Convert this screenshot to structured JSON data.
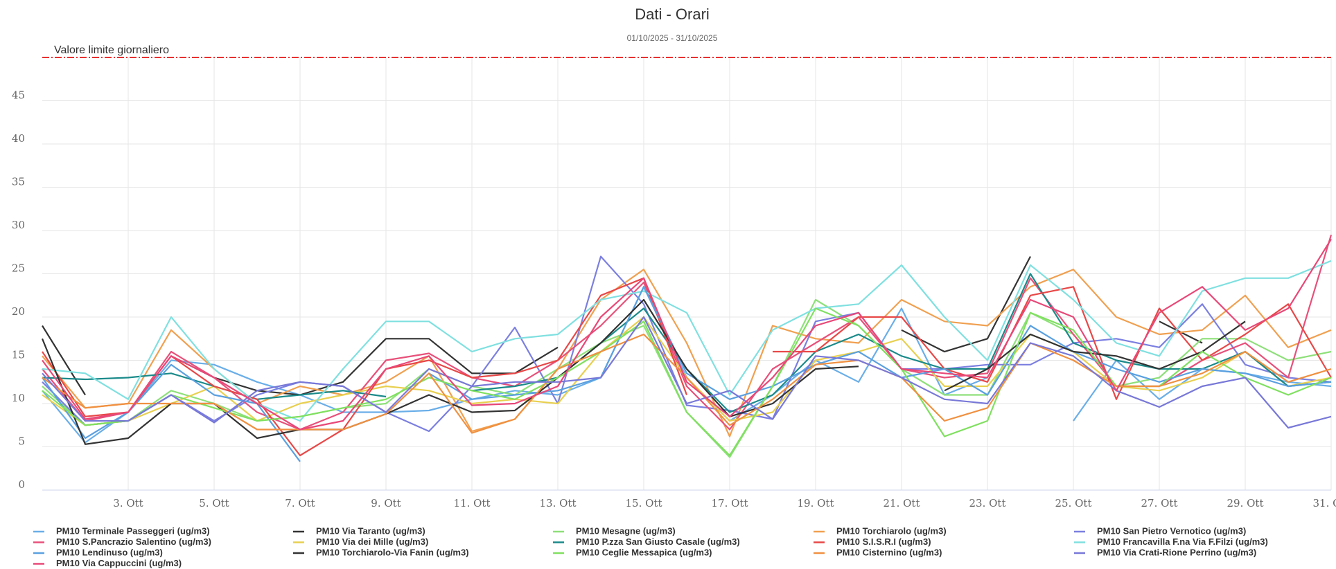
{
  "chart_data": {
    "type": "line",
    "title": "Dati - Orari",
    "subtitle": "01/10/2025 - 31/10/2025",
    "categories": [
      null,
      null,
      "3. Ott",
      null,
      "5. Ott",
      null,
      "7. Ott",
      null,
      "9. Ott",
      null,
      "11. Ott",
      null,
      "13. Ott",
      null,
      "15. Ott",
      null,
      "17. Ott",
      null,
      "19. Ott",
      null,
      "21. Ott",
      null,
      "23. Ott",
      null,
      "25. Ott",
      null,
      "27. Ott",
      null,
      "29. Ott",
      null,
      "31. Ott"
    ],
    "ylim": [
      0,
      50
    ],
    "yticks": [
      0,
      5,
      10,
      15,
      20,
      25,
      30,
      35,
      40,
      45
    ],
    "grid": true,
    "limit_line": {
      "value": 50,
      "label": "Valore limite giornaliero",
      "color": "#e83030"
    },
    "series": [
      {
        "name": "PM10 Terminale Passeggeri (ug/m3)",
        "color": "#6aaee8",
        "values": [
          11.5,
          5.5,
          9,
          15,
          14.5,
          12.5,
          11,
          9,
          9,
          9.2,
          10.5,
          11.5,
          11,
          13,
          23.5,
          13,
          8,
          11,
          15,
          12.5,
          21,
          11,
          13,
          null,
          8,
          15,
          10.5,
          14,
          13.5,
          12.5,
          12
        ]
      },
      {
        "name": "PM10 Via Taranto (ug/m3)",
        "color": "#333333",
        "values": [
          19,
          11,
          null,
          15.5,
          13,
          11.5,
          11,
          12.5,
          17.5,
          17.5,
          13.5,
          13.5,
          16.5,
          null,
          null,
          null,
          null,
          null,
          null,
          null,
          18.5,
          16,
          17.5,
          27,
          null,
          null,
          19.5,
          17,
          null,
          null,
          null
        ]
      },
      {
        "name": "PM10 Mesagne (ug/m3)",
        "color": "#8ee07a",
        "values": [
          12,
          7.5,
          8,
          11.5,
          10,
          8,
          8.5,
          9.5,
          10,
          14,
          12,
          11,
          14,
          17,
          19,
          9,
          3.8,
          12,
          22,
          19,
          14,
          11,
          11,
          20.5,
          18,
          12,
          13,
          17.5,
          17.5,
          15,
          16
        ]
      },
      {
        "name": "PM10 Torchiarolo (ug/m3)",
        "color": "#f0a050",
        "values": [
          15.5,
          9.5,
          10,
          18.5,
          14,
          10,
          12,
          11,
          12.5,
          15.5,
          6.8,
          8.2,
          14,
          22,
          25.5,
          17,
          6.2,
          19,
          17.5,
          17,
          22,
          19.5,
          19,
          23.5,
          25.5,
          20,
          18,
          18.5,
          22.5,
          16.5,
          18.5
        ]
      },
      {
        "name": "PM10 San Pietro Vernotico (ug/m3)",
        "color": "#7b7fe0",
        "values": [
          12.5,
          7.5,
          8,
          11,
          8,
          11,
          12.5,
          12,
          9,
          6.8,
          12,
          18.8,
          10,
          27,
          21.5,
          9.8,
          9.2,
          8.2,
          19.5,
          20.5,
          14,
          14,
          14.5,
          14.5,
          17,
          17.5,
          16.5,
          21.5,
          14.5,
          13,
          12.5
        ]
      },
      {
        "name": "PM10 S.Pancrazio Salentino (ug/m3)",
        "color": "#e8507a",
        "values": [
          14,
          8,
          9,
          16,
          13,
          9,
          7,
          9,
          15,
          15.8,
          13,
          12,
          15,
          19,
          24,
          12,
          7,
          14,
          17,
          20,
          14,
          13,
          13.5,
          24.5,
          18,
          12,
          12,
          15,
          17,
          13,
          29.5
        ]
      },
      {
        "name": "PM10 Via dei Mille (ug/m3)",
        "color": "#e8d050",
        "values": [
          11,
          7.5,
          8,
          10,
          12,
          8,
          10,
          11,
          12,
          11.5,
          10,
          10.5,
          10,
          16,
          20,
          13,
          8,
          9,
          15,
          16,
          17.5,
          12,
          12,
          18,
          16,
          12,
          11.5,
          13,
          16,
          12,
          13
        ]
      },
      {
        "name": "PM10 P.zza San Giusto Casale (ug/m3)",
        "color": "#1a8a8a",
        "values": [
          13,
          12.8,
          13,
          13.5,
          12,
          10.5,
          11,
          11.5,
          10.8,
          null,
          11.5,
          12,
          13,
          17,
          21,
          14,
          9,
          11,
          16,
          18,
          15.5,
          14,
          14,
          25,
          17,
          15,
          14,
          14,
          16,
          12,
          12.5
        ]
      },
      {
        "name": "PM10 S.I.S.R.I (ug/m3)",
        "color": "#e84848",
        "values": [
          16,
          8.5,
          9,
          15.5,
          12,
          10.5,
          4,
          7,
          14,
          15,
          13,
          13.5,
          15,
          22.5,
          24.5,
          11,
          null,
          16,
          16,
          20,
          20,
          14,
          12.5,
          22.5,
          23.5,
          10.5,
          21,
          15,
          18,
          21.5,
          13
        ]
      },
      {
        "name": "PM10 Francavilla F.na Via F.Filzi (ug/m3)",
        "color": "#80e0e0",
        "values": [
          14,
          13.5,
          10.5,
          20,
          14,
          10,
          8,
          14,
          19.5,
          19.5,
          16,
          17.5,
          18,
          22,
          23,
          20.5,
          11,
          18.5,
          21,
          21.5,
          26,
          20,
          15,
          26,
          22,
          17,
          15.5,
          23,
          24.5,
          24.5,
          26.5
        ]
      },
      {
        "name": "PM10 Lendinuso (ug/m3)",
        "color": "#5aa0e0",
        "values": [
          13,
          6,
          9,
          14.5,
          11,
          10,
          3.3,
          null,
          null,
          13.5,
          10.5,
          11,
          11.5,
          13,
          23.5,
          13.5,
          10.5,
          12,
          14.5,
          16,
          13,
          14,
          11,
          19,
          16,
          14,
          12.5,
          14,
          13.5,
          12,
          12.5
        ]
      },
      {
        "name": "PM10 Torchiarolo-Via Fanin (ug/m3)",
        "color": "#333333",
        "values": [
          17.5,
          5.3,
          6,
          10,
          10,
          6,
          7,
          7,
          8.8,
          11,
          9,
          9.2,
          13,
          17,
          22,
          14,
          8.5,
          10,
          14,
          14.3,
          null,
          11.5,
          14,
          18,
          16,
          15.5,
          14,
          16,
          19.5,
          null,
          20
        ]
      },
      {
        "name": "PM10 Ceglie Messapica (ug/m3)",
        "color": "#80e060",
        "values": [
          11.5,
          7.5,
          8,
          11,
          9.5,
          8,
          8.5,
          9.5,
          10.5,
          13,
          11.5,
          10.5,
          13,
          16,
          19.5,
          9,
          4,
          12,
          21,
          19,
          14,
          6.2,
          8,
          20.5,
          18.5,
          12,
          12,
          16,
          13,
          11,
          13
        ]
      },
      {
        "name": "PM10 Cisternino (ug/m3)",
        "color": "#f09040",
        "values": [
          13,
          9.5,
          10,
          10,
          10,
          7,
          7,
          7,
          8.8,
          13.5,
          6.6,
          8.2,
          14,
          16,
          18,
          13,
          7.5,
          10.5,
          14.5,
          15,
          13,
          8,
          9.5,
          17,
          15,
          12,
          12,
          13.5,
          16,
          12.5,
          14
        ]
      },
      {
        "name": "PM10 Via Crati-Rione Perrino (ug/m3)",
        "color": "#7878d8",
        "values": [
          13.5,
          8,
          8,
          11,
          7.8,
          11.5,
          12.5,
          12,
          9,
          14,
          12,
          12.5,
          12.5,
          13,
          20,
          10,
          11.5,
          8.2,
          15.5,
          15,
          13,
          10.5,
          10,
          17,
          15.5,
          11.5,
          9.6,
          12,
          13,
          7.2,
          8.5
        ]
      },
      {
        "name": "PM10 Via Cappuccini (ug/m3)",
        "color": "#e84878",
        "values": [
          15,
          8.2,
          9,
          15.5,
          13,
          10,
          7,
          8,
          14,
          15.5,
          9.8,
          10,
          12,
          20,
          24.5,
          12.5,
          8.5,
          13,
          19,
          20.5,
          14,
          13.5,
          13,
          22,
          20,
          11.5,
          20.5,
          23.5,
          18.5,
          21,
          29
        ]
      }
    ]
  }
}
